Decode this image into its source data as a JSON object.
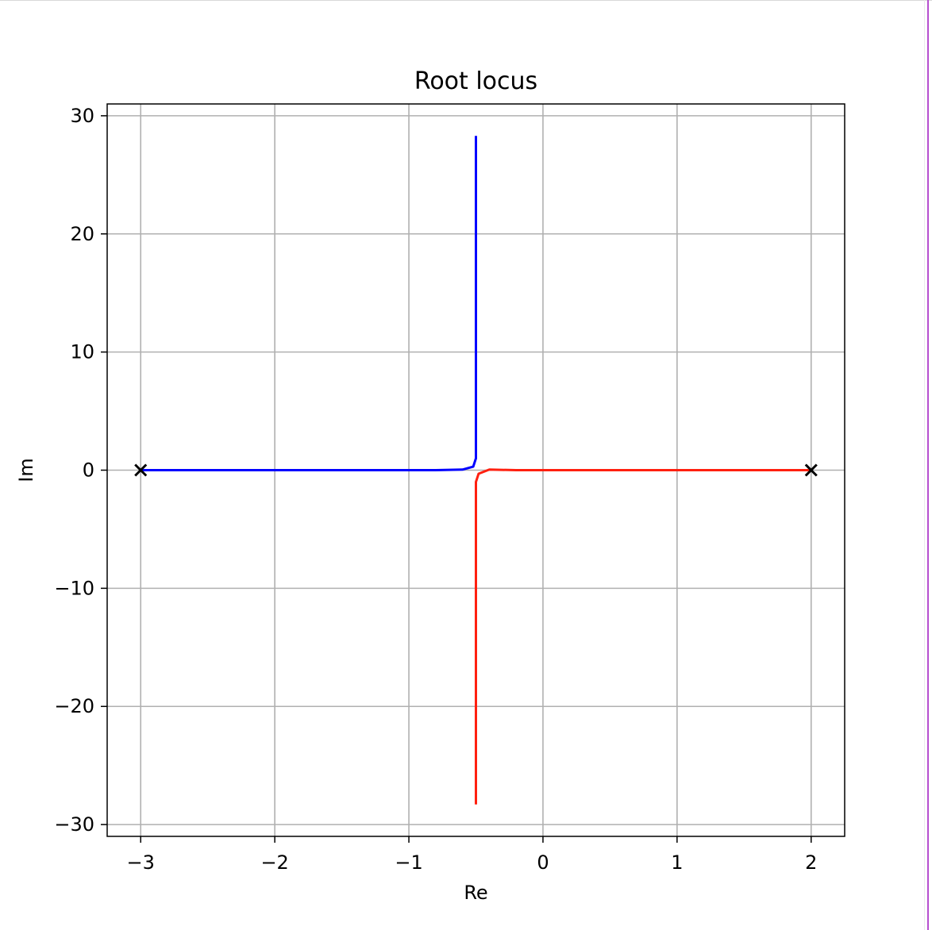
{
  "chart_data": {
    "type": "line",
    "title": "Root locus",
    "xlabel": "Re",
    "ylabel": "Im",
    "xlim": [
      -3.25,
      2.25
    ],
    "ylim": [
      -31,
      31
    ],
    "grid": true,
    "x_ticks": [
      -3,
      -2,
      -1,
      0,
      1,
      2
    ],
    "y_ticks": [
      -30,
      -20,
      -10,
      0,
      10,
      20,
      30
    ],
    "x_tick_labels": [
      "−3",
      "−2",
      "−1",
      "0",
      "1",
      "2"
    ],
    "y_tick_labels": [
      "−30",
      "−20",
      "−10",
      "0",
      "10",
      "20",
      "30"
    ],
    "series": [
      {
        "color": "#0000ff",
        "points": [
          [
            -3.0,
            0.0
          ],
          [
            -2.0,
            0.0
          ],
          [
            -1.0,
            0.0
          ],
          [
            -0.8,
            0.0
          ],
          [
            -0.6,
            0.05
          ],
          [
            -0.52,
            0.3
          ],
          [
            -0.5,
            1.0
          ],
          [
            -0.5,
            5.0
          ],
          [
            -0.5,
            15.0
          ],
          [
            -0.5,
            28.3
          ]
        ]
      },
      {
        "color": "#ff2010",
        "points": [
          [
            2.0,
            0.0
          ],
          [
            1.0,
            0.0
          ],
          [
            0.0,
            0.0
          ],
          [
            -0.2,
            0.0
          ],
          [
            -0.4,
            0.05
          ],
          [
            -0.48,
            -0.3
          ],
          [
            -0.5,
            -1.0
          ],
          [
            -0.5,
            -5.0
          ],
          [
            -0.5,
            -15.0
          ],
          [
            -0.5,
            -28.3
          ]
        ]
      }
    ],
    "poles": [
      [
        -3.0,
        0.0
      ],
      [
        2.0,
        0.0
      ]
    ],
    "pole_marker": "x"
  }
}
